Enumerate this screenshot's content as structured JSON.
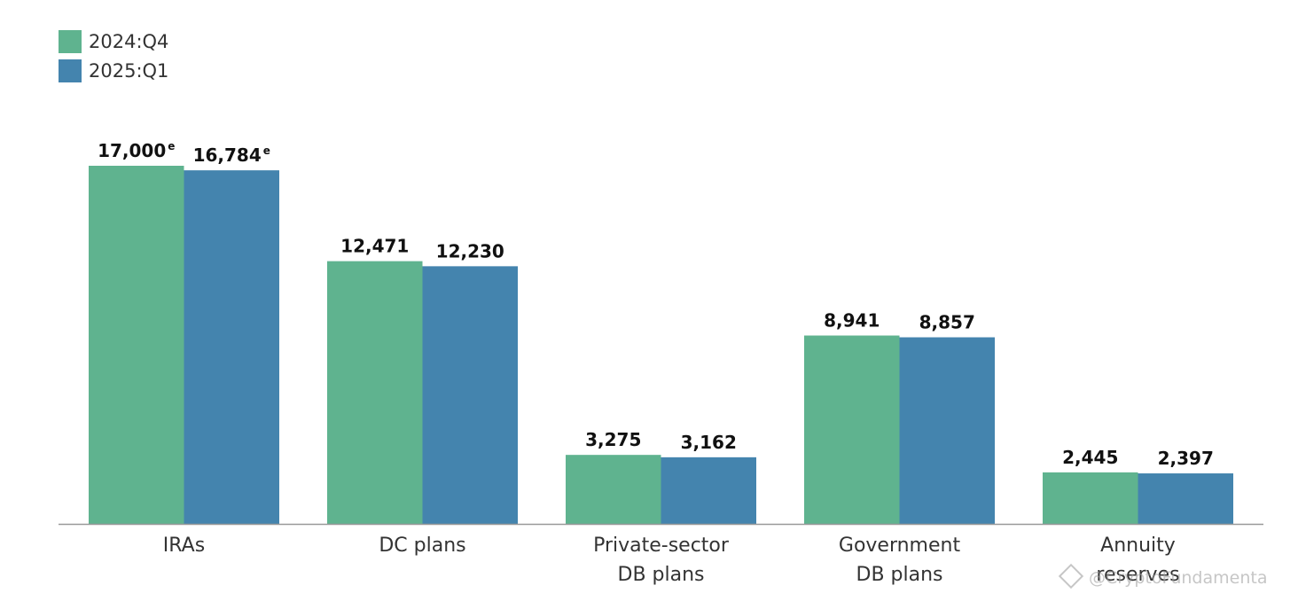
{
  "colors": {
    "s1": "#5fb38f",
    "s2": "#4484ae",
    "axis": "#999999",
    "text": "#111111",
    "label": "#333333"
  },
  "legend": [
    {
      "label": "2024:Q4",
      "color": "#5fb38f"
    },
    {
      "label": "2025:Q1",
      "color": "#4484ae"
    }
  ],
  "watermark": {
    "text": "@CryptoFundamenta",
    "icon": "binance-diamond-icon"
  },
  "chart_data": {
    "type": "bar",
    "categories": [
      [
        "IRAs"
      ],
      [
        "DC plans"
      ],
      [
        "Private-sector",
        "DB plans"
      ],
      [
        "Government",
        "DB plans"
      ],
      [
        "Annuity",
        "reserves"
      ]
    ],
    "series": [
      {
        "name": "2024:Q4",
        "values": [
          17000,
          12471,
          3275,
          8941,
          2445
        ],
        "labels": [
          "17,000",
          "12,471",
          "3,275",
          "8,941",
          "2,445"
        ],
        "notes": [
          "e",
          "",
          "",
          "",
          ""
        ]
      },
      {
        "name": "2025:Q1",
        "values": [
          16784,
          12230,
          3162,
          8857,
          2397
        ],
        "labels": [
          "16,784",
          "12,230",
          "3,162",
          "8,857",
          "2,397"
        ],
        "notes": [
          "e",
          "",
          "",
          "",
          ""
        ]
      }
    ],
    "ylim": [
      0,
      20000
    ],
    "grid": false,
    "legend_position": "top-left"
  }
}
